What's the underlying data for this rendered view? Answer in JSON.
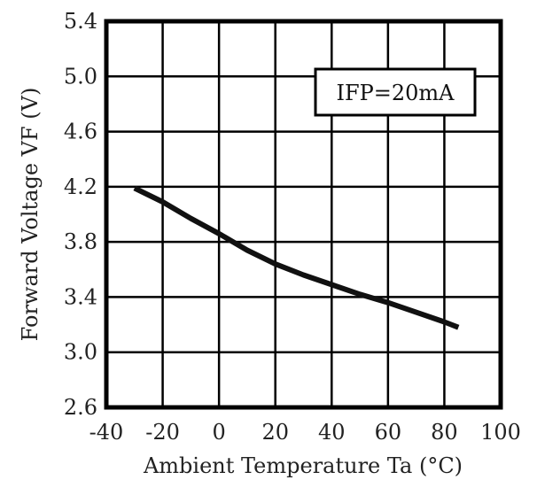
{
  "chart_data": {
    "type": "line",
    "xlabel": "Ambient Temperature Ta (°C)",
    "ylabel": "Forward Voltage VF (V)",
    "xlim": [
      -40,
      100
    ],
    "ylim": [
      2.6,
      5.4
    ],
    "x_ticks": [
      -40,
      -20,
      0,
      20,
      40,
      60,
      80,
      100
    ],
    "y_ticks": [
      2.6,
      3.0,
      3.4,
      3.8,
      4.2,
      4.6,
      5.0,
      5.4
    ],
    "x_tick_labels": [
      "-40",
      "-20",
      "0",
      "20",
      "40",
      "60",
      "80",
      "100"
    ],
    "y_tick_labels": [
      "2.6",
      "3.0",
      "3.4",
      "3.8",
      "4.2",
      "4.6",
      "5.0",
      "5.4"
    ],
    "grid": true,
    "legend": {
      "text": "IFP=20mA",
      "position": "top-right"
    },
    "series": [
      {
        "x": [
          -30,
          -20,
          -10,
          0,
          10,
          20,
          30,
          40,
          50,
          60,
          70,
          80,
          85
        ],
        "y": [
          4.19,
          4.09,
          3.97,
          3.86,
          3.74,
          3.64,
          3.56,
          3.49,
          3.42,
          3.36,
          3.29,
          3.22,
          3.18
        ],
        "color": "#111111"
      }
    ]
  }
}
